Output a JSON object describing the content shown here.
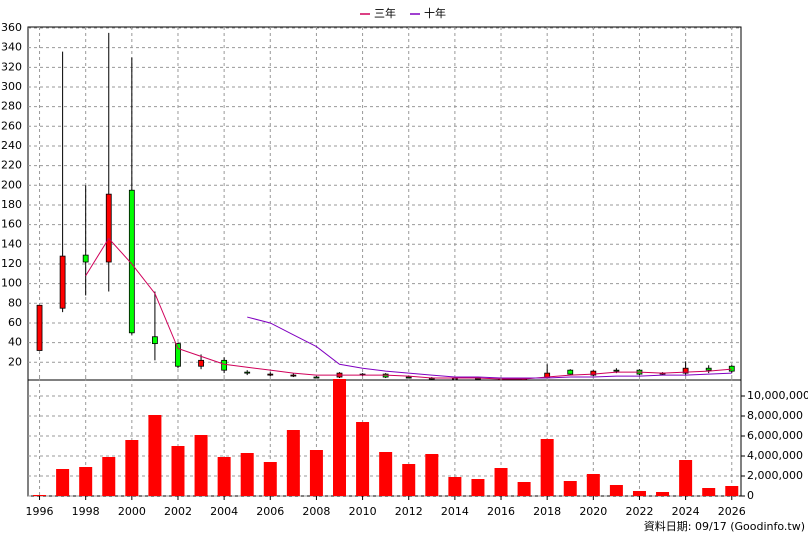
{
  "chart_data": [
    {
      "type": "candlestick",
      "legend": "top",
      "up_color": "#ff0000",
      "down_color": "#00ff00",
      "x": [
        1996,
        1997,
        1998,
        1999,
        2000,
        2001,
        2002,
        2003,
        2004,
        2005,
        2006,
        2007,
        2008,
        2009,
        2010,
        2011,
        2012,
        2013,
        2014,
        2015,
        2016,
        2017,
        2018,
        2019,
        2020,
        2021,
        2022,
        2023,
        2024,
        2025,
        2026
      ],
      "open": [
        32,
        75,
        129,
        122,
        195,
        46,
        39,
        16,
        22,
        10,
        8,
        7,
        5,
        5,
        8,
        8,
        5,
        4,
        4,
        4,
        3,
        3,
        5,
        12,
        7,
        12,
        12,
        8,
        9,
        14,
        16
      ],
      "high": [
        78,
        336,
        200,
        355,
        330,
        92,
        40,
        28,
        25,
        12,
        10,
        9,
        6,
        10,
        9,
        9,
        6,
        5,
        5,
        5,
        4,
        4,
        18,
        13,
        12,
        14,
        13,
        10,
        21,
        17,
        17
      ],
      "low": [
        32,
        71,
        88,
        92,
        48,
        22,
        14,
        13,
        9,
        7,
        6,
        5,
        3,
        4,
        6,
        4,
        3,
        2,
        3,
        3,
        2,
        2,
        3,
        7,
        6,
        9,
        7,
        7,
        7,
        9,
        9
      ],
      "close": [
        78,
        128,
        122,
        191,
        50,
        39,
        16,
        22,
        12,
        9,
        8,
        7,
        4,
        9,
        7,
        5,
        4,
        3,
        4,
        3,
        3,
        3,
        9,
        8,
        11,
        11,
        8,
        9,
        14,
        12,
        11
      ],
      "series": [
        {
          "name": "三年",
          "color": "#d0005a",
          "values": [
            null,
            null,
            108,
            146,
            120,
            90,
            34,
            26,
            18,
            15,
            12,
            9,
            7,
            7,
            7,
            7,
            6,
            4,
            4,
            4,
            3,
            3,
            5,
            7,
            8,
            10,
            10,
            9,
            10,
            11,
            13
          ]
        },
        {
          "name": "十年",
          "color": "#8000c0",
          "values": [
            null,
            null,
            null,
            null,
            null,
            null,
            null,
            null,
            null,
            66,
            60,
            48,
            36,
            18,
            14,
            11,
            9,
            7,
            5,
            5,
            4,
            4,
            4,
            5,
            5,
            6,
            6,
            7,
            7,
            8,
            9
          ]
        }
      ],
      "xlim": [
        1995.5,
        2026.4
      ],
      "ylim": [
        2,
        361
      ],
      "yticks": [
        20,
        40,
        60,
        80,
        100,
        120,
        140,
        160,
        180,
        200,
        220,
        240,
        260,
        280,
        300,
        320,
        340,
        360
      ],
      "grid": true
    },
    {
      "type": "bar",
      "color": "#ff0000",
      "annotation": "資料日期: 09/17 (Goodinfo.tw)",
      "x": [
        1996,
        1997,
        1998,
        1999,
        2000,
        2001,
        2002,
        2003,
        2004,
        2005,
        2006,
        2007,
        2008,
        2009,
        2010,
        2011,
        2012,
        2013,
        2014,
        2015,
        2016,
        2017,
        2018,
        2019,
        2020,
        2021,
        2022,
        2023,
        2024,
        2025,
        2026
      ],
      "values": [
        100000,
        2700000,
        2900000,
        3900000,
        5600000,
        8100000,
        5000000,
        6100000,
        3900000,
        4300000,
        3400000,
        6600000,
        4600000,
        11700000,
        7400000,
        4400000,
        3200000,
        4200000,
        1900000,
        1700000,
        2800000,
        1400000,
        5700000,
        1500000,
        2200000,
        1100000,
        500000,
        400000,
        3600000,
        800000,
        1000000
      ],
      "xlim": [
        1995.5,
        2026.4
      ],
      "xticks": [
        1996,
        1998,
        2000,
        2002,
        2004,
        2006,
        2008,
        2010,
        2012,
        2014,
        2016,
        2018,
        2020,
        2022,
        2024,
        2026
      ],
      "ylim": [
        0,
        11800000
      ],
      "yticks": [
        0,
        {
          "value": 2000000,
          "label": "2,000,000"
        },
        {
          "value": 4000000,
          "label": "4,000,000"
        },
        {
          "value": 6000000,
          "label": "6,000,000"
        },
        {
          "value": 8000000,
          "label": "8,000,000"
        },
        {
          "value": 10000000,
          "label": "10,000,000"
        }
      ],
      "grid": true
    }
  ]
}
